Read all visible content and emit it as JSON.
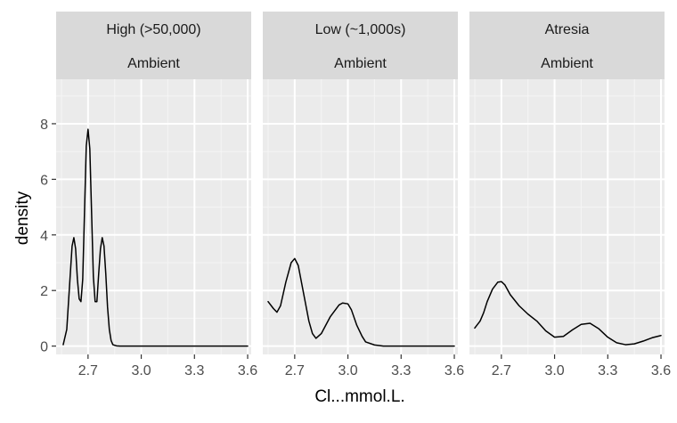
{
  "chart_data": {
    "type": "line",
    "chart_kind": "faceted density plot",
    "xlabel": "Cl...mmol.L.",
    "ylabel": "density",
    "xlim": [
      2.52,
      3.62
    ],
    "ylim": [
      -0.3,
      9.6
    ],
    "x_ticks": [
      2.7,
      3.0,
      3.3,
      3.6
    ],
    "x_tick_labels": [
      "2.7",
      "3.0",
      "3.3",
      "3.6"
    ],
    "y_ticks": [
      0,
      2,
      4,
      6,
      8
    ],
    "y_tick_labels": [
      "0",
      "2",
      "4",
      "6",
      "8"
    ],
    "grid": true,
    "panel_background": "#ebebeb",
    "strip_background": "#d9d9d9",
    "line_color": "#000000",
    "facets": [
      {
        "strip_top": "High (>50,000)",
        "strip_bottom": "Ambient",
        "x": [
          2.56,
          2.58,
          2.6,
          2.61,
          2.62,
          2.63,
          2.64,
          2.65,
          2.66,
          2.67,
          2.68,
          2.69,
          2.7,
          2.71,
          2.72,
          2.73,
          2.74,
          2.75,
          2.76,
          2.77,
          2.78,
          2.79,
          2.8,
          2.81,
          2.82,
          2.83,
          2.84,
          2.86,
          2.88,
          2.9,
          3.0,
          3.2,
          3.4,
          3.6
        ],
        "y": [
          0.05,
          0.6,
          2.6,
          3.6,
          3.9,
          3.5,
          2.4,
          1.7,
          1.6,
          2.4,
          4.8,
          7.2,
          7.8,
          7.1,
          4.8,
          2.5,
          1.6,
          1.6,
          2.6,
          3.5,
          3.9,
          3.6,
          2.6,
          1.4,
          0.6,
          0.2,
          0.05,
          0.01,
          0.0,
          0.0,
          0.0,
          0.0,
          0.0,
          0.0
        ]
      },
      {
        "strip_top": "Low (~1,000s)",
        "strip_bottom": "Ambient",
        "x": [
          2.55,
          2.58,
          2.6,
          2.62,
          2.65,
          2.68,
          2.7,
          2.72,
          2.75,
          2.78,
          2.8,
          2.82,
          2.85,
          2.9,
          2.95,
          2.97,
          3.0,
          3.02,
          3.05,
          3.08,
          3.1,
          3.15,
          3.2,
          3.3,
          3.4,
          3.5,
          3.6
        ],
        "y": [
          1.6,
          1.35,
          1.22,
          1.45,
          2.3,
          3.0,
          3.15,
          2.9,
          1.9,
          0.9,
          0.45,
          0.28,
          0.45,
          1.05,
          1.48,
          1.55,
          1.52,
          1.3,
          0.75,
          0.35,
          0.15,
          0.04,
          0.0,
          0.0,
          0.0,
          0.0,
          0.0
        ]
      },
      {
        "strip_top": "Atresia",
        "strip_bottom": "Ambient",
        "x": [
          2.55,
          2.58,
          2.6,
          2.62,
          2.65,
          2.68,
          2.7,
          2.72,
          2.75,
          2.8,
          2.85,
          2.9,
          2.95,
          3.0,
          3.05,
          3.1,
          3.15,
          3.2,
          3.25,
          3.3,
          3.35,
          3.4,
          3.45,
          3.5,
          3.55,
          3.6
        ],
        "y": [
          0.65,
          0.9,
          1.2,
          1.6,
          2.05,
          2.3,
          2.32,
          2.2,
          1.85,
          1.45,
          1.15,
          0.9,
          0.55,
          0.32,
          0.35,
          0.58,
          0.78,
          0.82,
          0.62,
          0.32,
          0.12,
          0.05,
          0.08,
          0.18,
          0.3,
          0.38
        ]
      }
    ]
  }
}
